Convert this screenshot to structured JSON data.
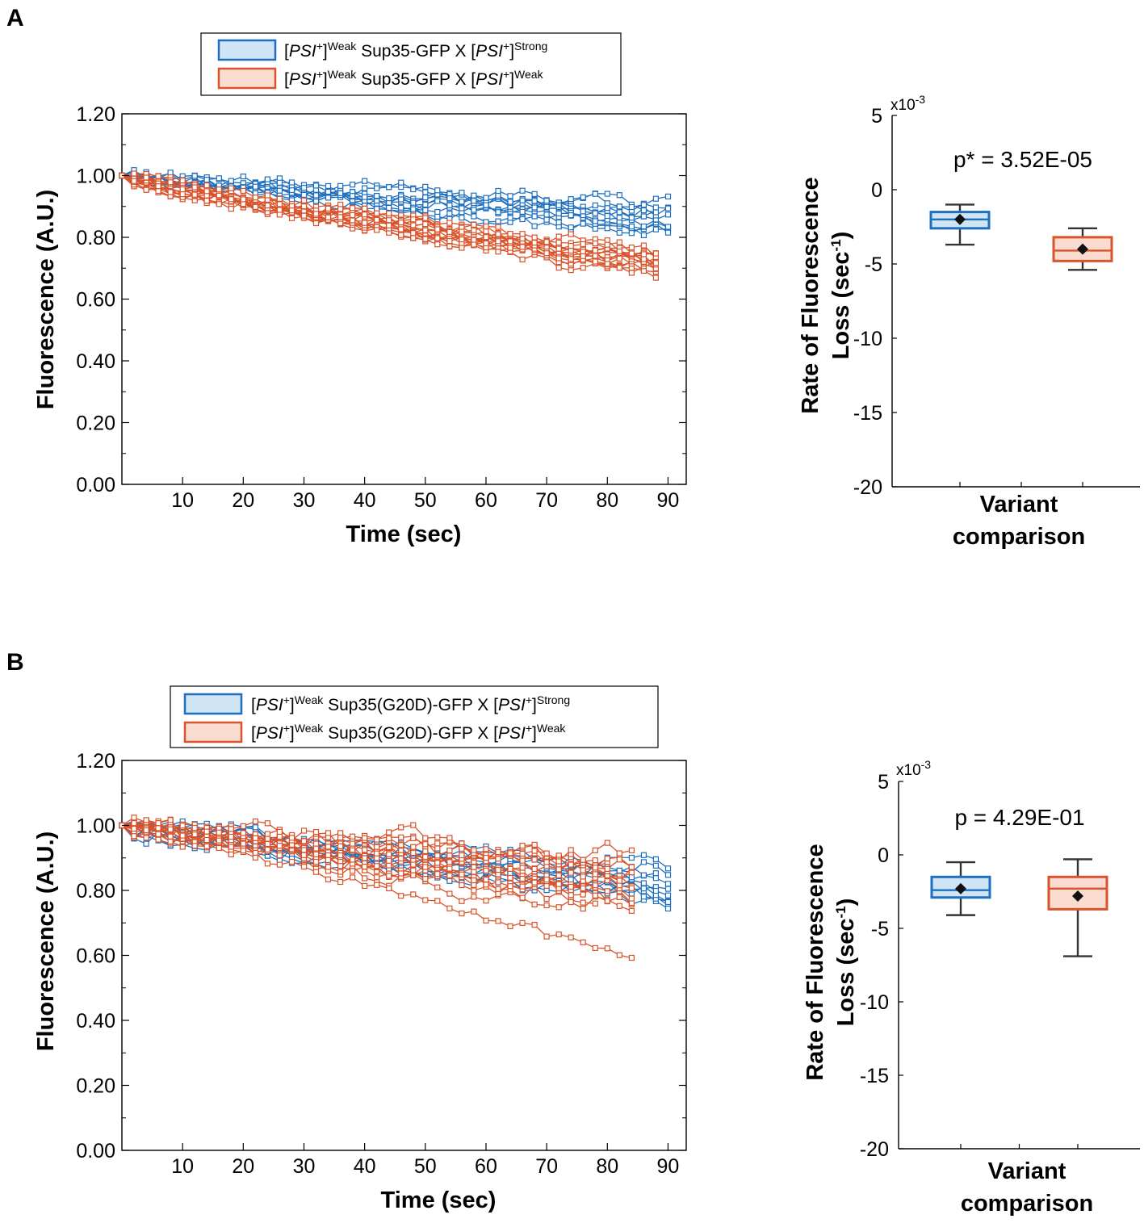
{
  "figure": {
    "panel_labels": [
      "A",
      "B"
    ]
  },
  "colors": {
    "strong_line": "#1f6fbf",
    "strong_fill": "#cfe4f5",
    "weak_line": "#d9532b",
    "weak_fill": "#f9dccf",
    "whisker": "#333333",
    "axis": "#000000"
  },
  "chart_data": [
    {
      "panel": "A",
      "type": "line",
      "title": "",
      "xlabel": "Time (sec)",
      "ylabel": "Fluorescence (A.U.)",
      "xlim": [
        0,
        93
      ],
      "ylim": [
        0,
        1.2
      ],
      "xticks": [
        10,
        20,
        30,
        40,
        50,
        60,
        70,
        80,
        90
      ],
      "yticks": [
        0,
        0.2,
        0.4,
        0.6,
        0.8,
        1.0,
        1.2
      ],
      "ytick_labels": [
        "0.00",
        "0.20",
        "0.40",
        "0.60",
        "0.80",
        "1.00",
        "1.20"
      ],
      "legend": [
        {
          "pre": "[",
          "ital": "PSI",
          "sup1": "+",
          "mid": "]",
          "sup2": "Weak",
          "rest": " Sup35-GFP X [",
          "ital2": "PSI",
          "sup3": "+",
          "end": "]",
          "sup4": "Strong",
          "color_key": "strong"
        },
        {
          "pre": "[",
          "ital": "PSI",
          "sup1": "+",
          "mid": "]",
          "sup2": "Weak",
          "rest": " Sup35-GFP X [",
          "ital2": "PSI",
          "sup3": "+",
          "end": "]",
          "sup4": "Weak",
          "color_key": "weak"
        }
      ],
      "series": [
        {
          "name": "[PSI+]Weak Sup35-GFP X [PSI+]Strong",
          "color_key": "strong",
          "n_traces": 11,
          "x_end": 91,
          "start": 1.0,
          "end_mean": 0.86,
          "end_spread": 0.045,
          "noise": 0.022
        },
        {
          "name": "[PSI+]Weak Sup35-GFP X [PSI+]Weak",
          "color_key": "weak",
          "n_traces": 16,
          "x_end": 88,
          "start": 1.0,
          "end_mean": 0.715,
          "end_spread": 0.035,
          "noise": 0.022
        }
      ]
    },
    {
      "panel": "A",
      "type": "box",
      "annotation": "p* = 3.52E-05",
      "xlabel": "Variant comparison",
      "ylabel": "Rate of Fluorescence Loss (sec⁻¹)",
      "exponent": "x10",
      "exponent_power": "-3",
      "ylim": [
        -20,
        5
      ],
      "yticks": [
        5,
        0,
        -5,
        -10,
        -15,
        -20
      ],
      "boxes": [
        {
          "name": "[PSI+]Weak Sup35-GFP X [PSI+]Strong",
          "color_key": "strong",
          "whisker_low": -3.7,
          "q1": -2.6,
          "median": -2.0,
          "q3": -1.5,
          "whisker_high": -1.0,
          "mean": -2.0
        },
        {
          "name": "[PSI+]Weak Sup35-GFP X [PSI+]Weak",
          "color_key": "weak",
          "whisker_low": -5.4,
          "q1": -4.8,
          "median": -4.1,
          "q3": -3.2,
          "whisker_high": -2.6,
          "mean": -4.0
        }
      ]
    },
    {
      "panel": "B",
      "type": "line",
      "title": "",
      "xlabel": "Time (sec)",
      "ylabel": "Fluorescence (A.U.)",
      "xlim": [
        0,
        93
      ],
      "ylim": [
        0,
        1.2
      ],
      "xticks": [
        10,
        20,
        30,
        40,
        50,
        60,
        70,
        80,
        90
      ],
      "yticks": [
        0,
        0.2,
        0.4,
        0.6,
        0.8,
        1.0,
        1.2
      ],
      "ytick_labels": [
        "0.00",
        "0.20",
        "0.40",
        "0.60",
        "0.80",
        "1.00",
        "1.20"
      ],
      "legend": [
        {
          "pre": "[",
          "ital": "PSI",
          "sup1": "+",
          "mid": "]",
          "sup2": "Weak",
          "rest": " Sup35(G20D)-GFP X [",
          "ital2": "PSI",
          "sup3": "+",
          "end": "]",
          "sup4": "Strong",
          "color_key": "strong"
        },
        {
          "pre": "[",
          "ital": "PSI",
          "sup1": "+",
          "mid": "]",
          "sup2": "Weak",
          "rest": " Sup35(G20D)-GFP X [",
          "ital2": "PSI",
          "sup3": "+",
          "end": "]",
          "sup4": "Weak",
          "color_key": "weak"
        }
      ],
      "series": [
        {
          "name": "[PSI+]Weak Sup35(G20D)-GFP X [PSI+]Strong",
          "color_key": "strong",
          "n_traces": 11,
          "x_end": 90,
          "start": 1.0,
          "end_mean": 0.82,
          "end_spread": 0.055,
          "noise": 0.028
        },
        {
          "name": "[PSI+]Weak Sup35(G20D)-GFP X [PSI+]Weak",
          "color_key": "weak",
          "n_traces": 16,
          "x_end": 84,
          "start": 1.0,
          "end_mean": 0.83,
          "end_spread": 0.085,
          "noise": 0.03,
          "outlier": {
            "x_end": 84,
            "end": 0.6
          }
        }
      ]
    },
    {
      "panel": "B",
      "type": "box",
      "annotation": "p = 4.29E-01",
      "xlabel": "Variant comparison",
      "ylabel": "Rate of Fluorescence Loss (sec⁻¹)",
      "exponent": "x10",
      "exponent_power": "-3",
      "ylim": [
        -20,
        5
      ],
      "yticks": [
        5,
        0,
        -5,
        -10,
        -15,
        -20
      ],
      "boxes": [
        {
          "name": "[PSI+]Weak Sup35(G20D)-GFP X [PSI+]Strong",
          "color_key": "strong",
          "whisker_low": -4.1,
          "q1": -2.9,
          "median": -2.4,
          "q3": -1.5,
          "whisker_high": -0.5,
          "mean": -2.3
        },
        {
          "name": "[PSI+]Weak Sup35(G20D)-GFP X [PSI+]Weak",
          "color_key": "weak",
          "whisker_low": -6.9,
          "q1": -3.7,
          "median": -2.3,
          "q3": -1.5,
          "whisker_high": -0.3,
          "mean": -2.8
        }
      ]
    }
  ],
  "box_ylabel_lines": [
    "Rate of Fluorescence",
    "Loss (sec",
    "-1",
    ")"
  ],
  "box_xlabel_lines": [
    "Variant",
    "comparison"
  ]
}
